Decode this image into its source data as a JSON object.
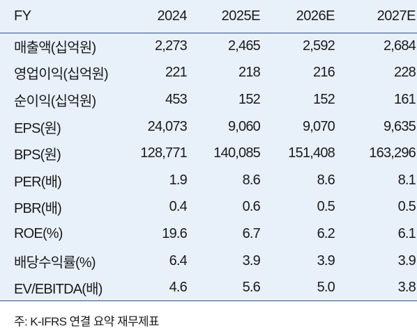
{
  "table": {
    "header": [
      "FY",
      "2024",
      "2025E",
      "2026E",
      "2027E"
    ],
    "rows": [
      {
        "label": "매출액(십억원)",
        "values": [
          "2,273",
          "2,465",
          "2,592",
          "2,684"
        ]
      },
      {
        "label": "영업이익(십억원)",
        "values": [
          "221",
          "218",
          "216",
          "228"
        ]
      },
      {
        "label": "순이익(십억원)",
        "values": [
          "453",
          "152",
          "152",
          "161"
        ]
      },
      {
        "label": "EPS(원)",
        "values": [
          "24,073",
          "9,060",
          "9,070",
          "9,635"
        ]
      },
      {
        "label": "BPS(원)",
        "values": [
          "128,771",
          "140,085",
          "151,408",
          "163,296"
        ]
      },
      {
        "label": "PER(배)",
        "values": [
          "1.9",
          "8.6",
          "8.6",
          "8.1"
        ]
      },
      {
        "label": "PBR(배)",
        "values": [
          "0.4",
          "0.6",
          "0.5",
          "0.5"
        ]
      },
      {
        "label": "ROE(%)",
        "values": [
          "19.6",
          "6.7",
          "6.2",
          "6.1"
        ]
      },
      {
        "label": "배당수익률(%)",
        "values": [
          "6.4",
          "3.9",
          "3.9",
          "3.9"
        ]
      },
      {
        "label": "EV/EBITDA(배)",
        "values": [
          "4.6",
          "5.6",
          "5.0",
          "3.8"
        ]
      }
    ]
  },
  "note": "주: K-IFRS 연결 요약 재무제표",
  "colors": {
    "background": "#e8f0fa",
    "rule": "#2d4f86"
  }
}
